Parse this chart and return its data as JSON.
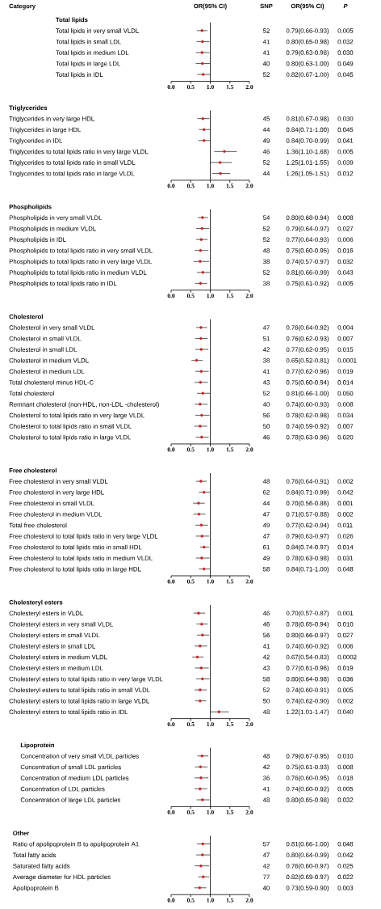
{
  "chart_data": [
    {
      "type": "other",
      "annotations": [
        "Category",
        "SNP",
        "OR(95% CI)",
        "P",
        "OR(95% CI)"
      ]
    },
    {
      "type": "scatter",
      "title": "Total lipids",
      "orientation": "horizontal",
      "marker": "circle",
      "color": "#d7191c",
      "categories": [
        "Total lipids in very small VLDL",
        "Total lipids in small LDL",
        "Total lipids in medium LDL",
        "Total lipids in large LDL",
        "Total lipids in IDL"
      ],
      "values": [
        0.79,
        0.8,
        0.79,
        0.8,
        0.82
      ],
      "errors": [
        [
          0.66,
          0.93
        ],
        [
          0.65,
          0.98
        ],
        [
          0.63,
          0.98
        ],
        [
          0.63,
          1.0
        ],
        [
          0.67,
          1.0
        ]
      ],
      "value_labels": [
        "0.79(0.66-0.93)",
        "0.80(0.65-0.98)",
        "0.79(0.63-0.98)",
        "0.80(0.63-1.00)",
        "0.82(0.67-1.00)"
      ],
      "annotations": [
        "52",
        "0.005",
        "41",
        "0.032",
        "41",
        "0.030",
        "40",
        "0.049",
        "52",
        "0.045"
      ],
      "xlim": [
        0,
        2
      ],
      "xticks": [
        {
          "value": 0,
          "label": "0.0"
        },
        {
          "value": 0.5,
          "label": "0.5"
        },
        {
          "value": 1,
          "label": "1.0"
        },
        {
          "value": 1.5,
          "label": "1.5"
        },
        {
          "value": 2,
          "label": "2.0"
        }
      ],
      "ref_lines": [
        {
          "axis": "x",
          "value": 1
        }
      ]
    },
    {
      "type": "scatter",
      "title": "Triglycerides",
      "orientation": "horizontal",
      "marker": "circle",
      "color": "#d7191c",
      "categories": [
        "Triglycerides in very large HDL",
        "Triglycerides in large HDL",
        "Triglycerides in IDL",
        "Triglycerides to total lipids ratio in very large VLDL",
        "Triglycerides to total lipids ratio in small VLDL",
        "Triglycerides to total lipids ratio in large VLDL"
      ],
      "values": [
        0.81,
        0.84,
        0.84,
        1.36,
        1.25,
        1.26
      ],
      "errors": [
        [
          0.67,
          0.98
        ],
        [
          0.71,
          1.0
        ],
        [
          0.7,
          0.99
        ],
        [
          1.1,
          1.68
        ],
        [
          1.01,
          1.55
        ],
        [
          1.05,
          1.51
        ]
      ],
      "value_labels": [
        "0.81(0.67-0.98)",
        "0.84(0.71-1.00)",
        "0.84(0.70-0.99)",
        "1.36(1.10-1.68)",
        "1.25(1.01-1.55)",
        "1.26(1.05-1.51)"
      ],
      "annotations": [
        "45",
        "0.030",
        "44",
        "0.045",
        "49",
        "0.041",
        "46",
        "0.005",
        "52",
        "0.039",
        "44",
        "0.012"
      ],
      "xlim": [
        0,
        2
      ],
      "xticks": [
        {
          "value": 0,
          "label": "0.0"
        },
        {
          "value": 0.5,
          "label": "0.5"
        },
        {
          "value": 1,
          "label": "1.0"
        },
        {
          "value": 1.5,
          "label": "1.5"
        },
        {
          "value": 2,
          "label": "2.0"
        }
      ],
      "ref_lines": [
        {
          "axis": "x",
          "value": 1
        }
      ]
    },
    {
      "type": "scatter",
      "title": "Phospholipids",
      "orientation": "horizontal",
      "marker": "circle",
      "color": "#d7191c",
      "categories": [
        "Phospholipids in very small VLDL",
        "Phospholipids in medium VLDL",
        "Phospholipids in IDL",
        "Phospholipids to total lipids ratio in very small VLDL",
        "Phospholipids to total lipids ratio in very large VLDL",
        "Phospholipids to total lipids ratio in medium VLDL",
        "Phospholipids to total lipids ratio in IDL"
      ],
      "values": [
        0.8,
        0.79,
        0.77,
        0.75,
        0.74,
        0.81,
        0.75
      ],
      "errors": [
        [
          0.68,
          0.94
        ],
        [
          0.64,
          0.97
        ],
        [
          0.64,
          0.93
        ],
        [
          0.6,
          0.95
        ],
        [
          0.57,
          0.97
        ],
        [
          0.66,
          0.99
        ],
        [
          0.61,
          0.92
        ]
      ],
      "value_labels": [
        "0.80(0.68-0.94)",
        "0.79(0.64-0.97)",
        "0.77(0.64-0.93)",
        "0.75(0.60-0.95)",
        "0.74(0.57-0.97)",
        "0.81(0.66-0.99)",
        "0.75(0.61-0.92)"
      ],
      "annotations": [
        "54",
        "0.008",
        "52",
        "0.027",
        "52",
        "0.006",
        "48",
        "0.016",
        "38",
        "0.032",
        "52",
        "0.043",
        "38",
        "0.005"
      ],
      "xlim": [
        0,
        2
      ],
      "xticks": [
        {
          "value": 0,
          "label": "0.0"
        },
        {
          "value": 0.5,
          "label": "0.5"
        },
        {
          "value": 1,
          "label": "1.0"
        },
        {
          "value": 1.5,
          "label": "1.5"
        },
        {
          "value": 2,
          "label": "2.0"
        }
      ],
      "ref_lines": [
        {
          "axis": "x",
          "value": 1
        }
      ]
    },
    {
      "type": "scatter",
      "title": "Cholesterol",
      "orientation": "horizontal",
      "marker": "circle",
      "color": "#d7191c",
      "categories": [
        "Cholesterol in very small VLDL",
        "Cholesterol in small VLDL",
        "Cholesterol in small LDL",
        "Cholesterol in medium VLDL",
        "Cholesterol in medium LDL",
        "Total cholesterol minus HDL-C",
        "Total cholesterol",
        "Remnant cholesterol (non-HDL, non-LDL -cholesterol)",
        "Cholesterol to total lipids ratio in very large VLDL",
        "Cholesterol to total lipids ratio in small VLDL",
        "Cholesterol to total lipids ratio in large VLDL"
      ],
      "values": [
        0.76,
        0.76,
        0.77,
        0.65,
        0.77,
        0.75,
        0.81,
        0.74,
        0.78,
        0.74,
        0.78
      ],
      "errors": [
        [
          0.64,
          0.92
        ],
        [
          0.62,
          0.93
        ],
        [
          0.62,
          0.95
        ],
        [
          0.52,
          0.81
        ],
        [
          0.62,
          0.96
        ],
        [
          0.6,
          0.94
        ],
        [
          0.66,
          1.0
        ],
        [
          0.6,
          0.93
        ],
        [
          0.62,
          0.98
        ],
        [
          0.59,
          0.92
        ],
        [
          0.63,
          0.96
        ]
      ],
      "value_labels": [
        "0.76(0.64-0.92)",
        "0.76(0.62-0.93)",
        "0.77(0.62-0.95)",
        "0.65(0.52-0.81)",
        "0.77(0.62-0.96)",
        "0.75(0.60-0.94)",
        "0.81(0.66-1.00)",
        "0.74(0.60-0.93)",
        "0.78(0.62-0.98)",
        "0.74(0.59-0.92)",
        "0.78(0.63-0.96)"
      ],
      "annotations": [
        "47",
        "0.004",
        "51",
        "0.007",
        "42",
        "0.015",
        "38",
        "0.0001",
        "41",
        "0.019",
        "43",
        "0.014",
        "52",
        "0.050",
        "40",
        "0.008",
        "56",
        "0.034",
        "50",
        "0.007",
        "46",
        "0.020"
      ],
      "xlim": [
        0,
        2
      ],
      "xticks": [
        {
          "value": 0,
          "label": "0.0"
        },
        {
          "value": 0.5,
          "label": "0.5"
        },
        {
          "value": 1,
          "label": "1.0"
        },
        {
          "value": 1.5,
          "label": "1.5"
        },
        {
          "value": 2,
          "label": "2.0"
        }
      ],
      "ref_lines": [
        {
          "axis": "x",
          "value": 1
        }
      ]
    },
    {
      "type": "scatter",
      "title": "Free cholesterol",
      "orientation": "horizontal",
      "marker": "circle",
      "color": "#d7191c",
      "categories": [
        "Free cholesterol in very small VLDL",
        "Free cholesterol in very large HDL",
        "Free cholesterol in small VLDL",
        "Free cholesterol in medium VLDL",
        "Total free cholesterol",
        "Free cholesterol to total lipids ratio in very large VLDL",
        "Free cholesterol to total lipids ratio in small HDL",
        "Free cholesterol to total lipids ratio in medium VLDL",
        "Free cholesterol to total lipids ratio in large HDL"
      ],
      "values": [
        0.76,
        0.84,
        0.7,
        0.71,
        0.77,
        0.79,
        0.84,
        0.78,
        0.84
      ],
      "errors": [
        [
          0.64,
          0.91
        ],
        [
          0.71,
          0.99
        ],
        [
          0.56,
          0.86
        ],
        [
          0.57,
          0.88
        ],
        [
          0.62,
          0.94
        ],
        [
          0.63,
          0.97
        ],
        [
          0.74,
          0.97
        ],
        [
          0.63,
          0.98
        ],
        [
          0.71,
          1.0
        ]
      ],
      "value_labels": [
        "0.76(0.64-0.91)",
        "0.84(0.71-0.99)",
        "0.70(0.56-0.86)",
        "0.71(0.57-0.88)",
        "0.77(0.62-0.94)",
        "0.79(0.63-0.97)",
        "0.84(0.74-0.97)",
        "0.78(0.63-0.98)",
        "0.84(0.71-1.00)"
      ],
      "annotations": [
        "48",
        "0.002",
        "62",
        "0.042",
        "44",
        "0.001",
        "47",
        "0.002",
        "49",
        "0.011",
        "47",
        "0.026",
        "61",
        "0.014",
        "49",
        "0.031",
        "58",
        "0.048"
      ],
      "xlim": [
        0,
        2
      ],
      "xticks": [
        {
          "value": 0,
          "label": "0.0"
        },
        {
          "value": 0.5,
          "label": "0.5"
        },
        {
          "value": 1,
          "label": "1.0"
        },
        {
          "value": 1.5,
          "label": "1.5"
        },
        {
          "value": 2,
          "label": "2.0"
        }
      ],
      "ref_lines": [
        {
          "axis": "x",
          "value": 1
        }
      ]
    },
    {
      "type": "scatter",
      "title": "Cholesteryl esters",
      "orientation": "horizontal",
      "marker": "circle",
      "color": "#d7191c",
      "categories": [
        "Cholesteryl esters in VLDL",
        "Cholesteryl esters in very small VLDL",
        "Cholesteryl esters in small VLDL",
        "Cholesteryl esters in small LDL",
        "Cholesteryl esters in medium VLDL",
        "Cholesteryl esters in medium LDL",
        "Cholesteryl esters to total lipids ratio in very large VLDL",
        "Cholesteryl esters to total lipids ratio in small VLDL",
        "Cholesteryl esters to total lipids ratio in large VLDL",
        "Cholesteryl esters to total lipids ratio in IDL"
      ],
      "values": [
        0.7,
        0.78,
        0.8,
        0.74,
        0.67,
        0.77,
        0.8,
        0.74,
        0.74,
        1.22
      ],
      "errors": [
        [
          0.57,
          0.87
        ],
        [
          0.65,
          0.94
        ],
        [
          0.66,
          0.97
        ],
        [
          0.6,
          0.92
        ],
        [
          0.54,
          0.83
        ],
        [
          0.61,
          0.96
        ],
        [
          0.64,
          0.98
        ],
        [
          0.6,
          0.91
        ],
        [
          0.62,
          0.9
        ],
        [
          1.01,
          1.47
        ]
      ],
      "value_labels": [
        "0.70(0.57-0.87)",
        "0.78(0.65-0.94)",
        "0.80(0.66-0.97)",
        "0.74(0.60-0.92)",
        "0.67(0.54-0.83)",
        "0.77(0.61-0.96)",
        "0.80(0.64-0.98)",
        "0.74(0.60-0.91)",
        "0.74(0.62-0.90)",
        "1.22(1.01-1.47)"
      ],
      "annotations": [
        "46",
        "0.001",
        "46",
        "0.010",
        "56",
        "0.027",
        "41",
        "0.006",
        "42",
        "0.0002",
        "43",
        "0.019",
        "58",
        "0.036",
        "52",
        "0.005",
        "50",
        "0.002",
        "48",
        "0.040"
      ],
      "xlim": [
        0,
        2
      ],
      "xticks": [
        {
          "value": 0,
          "label": "0.0"
        },
        {
          "value": 0.5,
          "label": "0.5"
        },
        {
          "value": 1,
          "label": "1.0"
        },
        {
          "value": 1.5,
          "label": "1.5"
        },
        {
          "value": 2,
          "label": "2.0"
        }
      ],
      "ref_lines": [
        {
          "axis": "x",
          "value": 1
        }
      ]
    },
    {
      "type": "scatter",
      "title": "Lipoprotein",
      "orientation": "horizontal",
      "marker": "circle",
      "color": "#d7191c",
      "categories": [
        "Concentration of very small VLDL particles",
        "Concentration of small LDL particles",
        "Concentration of medium LDL particles",
        "Concentration of LDL particles",
        "Concentration of large LDL particles"
      ],
      "values": [
        0.79,
        0.75,
        0.76,
        0.74,
        0.8
      ],
      "errors": [
        [
          0.67,
          0.95
        ],
        [
          0.61,
          0.93
        ],
        [
          0.6,
          0.95
        ],
        [
          0.6,
          0.92
        ],
        [
          0.65,
          0.98
        ]
      ],
      "value_labels": [
        "0.79(0.67-0.95)",
        "0.75(0.61-0.93)",
        "0.76(0.60-0.95)",
        "0.74(0.60-0.92)",
        "0.80(0.65-0.98)"
      ],
      "annotations": [
        "48",
        "0.010",
        "42",
        "0.008",
        "36",
        "0.018",
        "41",
        "0.005",
        "48",
        "0.032"
      ],
      "xlim": [
        0,
        2
      ],
      "xticks": [
        {
          "value": 0,
          "label": "0.0"
        },
        {
          "value": 0.5,
          "label": "0.5"
        },
        {
          "value": 1,
          "label": "1.0"
        },
        {
          "value": 1.5,
          "label": "1.5"
        },
        {
          "value": 2,
          "label": "2.0"
        }
      ],
      "ref_lines": [
        {
          "axis": "x",
          "value": 1
        }
      ]
    },
    {
      "type": "scatter",
      "title": "Other",
      "orientation": "horizontal",
      "marker": "circle",
      "color": "#d7191c",
      "categories": [
        "Ratio of apolipoprotein B to apolipoprotein A1",
        "Total fatty acids",
        "Saturated fatty acids",
        "Average diameter for HDL particles",
        "Apolipoprotein B"
      ],
      "values": [
        0.81,
        0.8,
        0.76,
        0.82,
        0.73
      ],
      "errors": [
        [
          0.66,
          1.0
        ],
        [
          0.64,
          0.99
        ],
        [
          0.6,
          0.97
        ],
        [
          0.69,
          0.97
        ],
        [
          0.59,
          0.9
        ]
      ],
      "value_labels": [
        "0.81(0.66-1.00)",
        "0.80(0.64-0.99)",
        "0.76(0.60-0.97)",
        "0.82(0.69-0.97)",
        "0.73(0.59-0.90)"
      ],
      "annotations": [
        "57",
        "0.048",
        "47",
        "0.042",
        "42",
        "0.025",
        "77",
        "0.022",
        "40",
        "0.003"
      ],
      "xlim": [
        0,
        2
      ],
      "xticks": [
        {
          "value": 0,
          "label": "0.0"
        },
        {
          "value": 0.5,
          "label": "0.5"
        },
        {
          "value": 1,
          "label": "1.0"
        },
        {
          "value": 1.5,
          "label": "1.5"
        },
        {
          "value": 2,
          "label": "2.0"
        }
      ],
      "ref_lines": [
        {
          "axis": "x",
          "value": 1
        }
      ]
    }
  ]
}
